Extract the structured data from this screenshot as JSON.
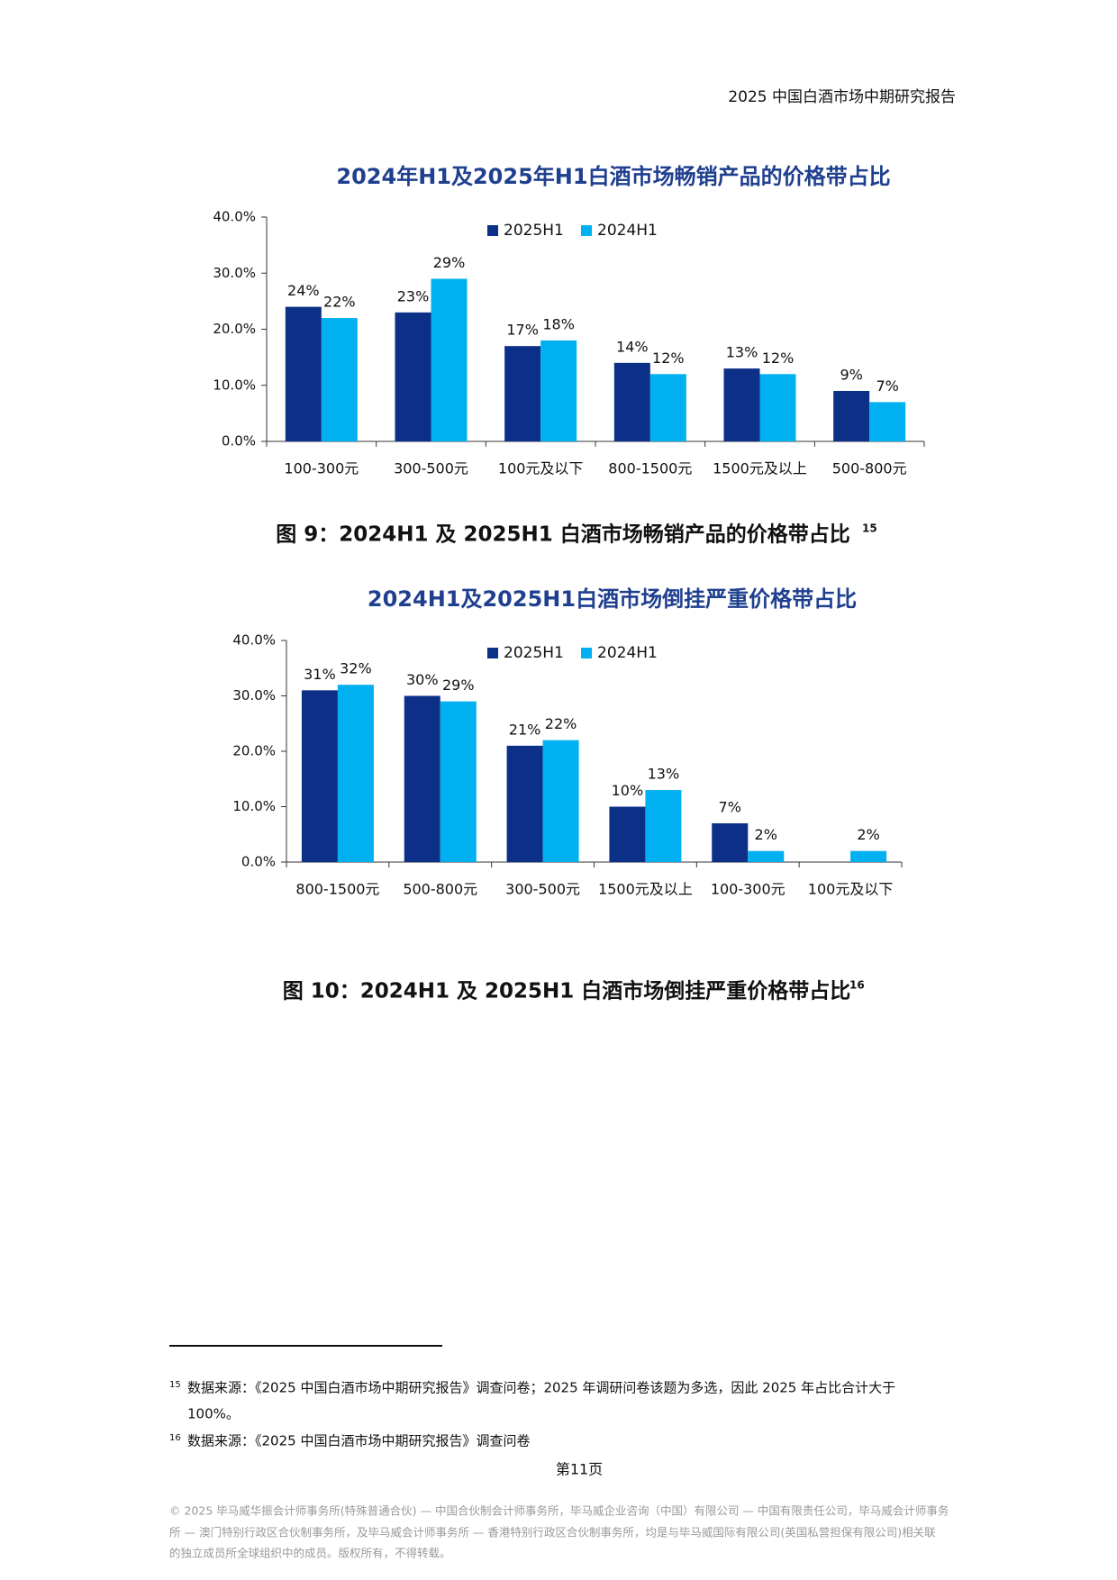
{
  "header": {
    "title": "2025 中国白酒市场中期研究报告"
  },
  "chart_data": [
    {
      "type": "bar",
      "title": "2024年H1及2025年H1白酒市场畅销产品的价格带占比",
      "categories": [
        "100-300元",
        "300-500元",
        "100元及以下",
        "800-1500元",
        "1500元及以上",
        "500-800元"
      ],
      "series": [
        {
          "name": "2025H1",
          "color": "#0c2f87",
          "values": [
            24,
            23,
            17,
            14,
            13,
            9
          ],
          "value_labels": [
            "24%",
            "23%",
            "17%",
            "14%",
            "13%",
            "9%"
          ]
        },
        {
          "name": "2024H1",
          "color": "#00b0f0",
          "values": [
            22,
            29,
            18,
            12,
            12,
            7
          ],
          "value_labels": [
            "22%",
            "29%",
            "18%",
            "12%",
            "12%",
            "7%"
          ]
        }
      ],
      "ylim": [
        0,
        40
      ],
      "yticks": [
        {
          "value": 0,
          "label": "0.0%"
        },
        {
          "value": 10,
          "label": "10.0%"
        },
        {
          "value": 20,
          "label": "20.0%"
        },
        {
          "value": 30,
          "label": "30.0%"
        },
        {
          "value": 40,
          "label": "40.0%"
        }
      ],
      "legend": "top"
    },
    {
      "type": "bar",
      "title": "2024H1及2025H1白酒市场倒挂严重价格带占比",
      "categories": [
        "800-1500元",
        "500-800元",
        "300-500元",
        "1500元及以上",
        "100-300元",
        "100元及以下"
      ],
      "series": [
        {
          "name": "2025H1",
          "color": "#0c2f87",
          "values": [
            31,
            30,
            21,
            10,
            7,
            null
          ],
          "value_labels": [
            "31%",
            "30%",
            "21%",
            "10%",
            "7%",
            null
          ]
        },
        {
          "name": "2024H1",
          "color": "#00b0f0",
          "values": [
            32,
            29,
            22,
            13,
            2,
            2
          ],
          "value_labels": [
            "32%",
            "29%",
            "22%",
            "13%",
            "2%",
            "2%"
          ]
        }
      ],
      "ylim": [
        0,
        40
      ],
      "yticks": [
        {
          "value": 0,
          "label": "0.0%"
        },
        {
          "value": 10,
          "label": "10.0%"
        },
        {
          "value": 20,
          "label": "20.0%"
        },
        {
          "value": 30,
          "label": "30.0%"
        },
        {
          "value": 40,
          "label": "40.0%"
        }
      ],
      "legend": "top"
    }
  ],
  "captions": [
    {
      "text": "图 9：2024H1 及 2025H1 白酒市场畅销产品的价格带占比",
      "note": "15"
    },
    {
      "text": "图 10：2024H1 及 2025H1 白酒市场倒挂严重价格带占比",
      "note": "16"
    }
  ],
  "footnotes": [
    {
      "mark": "15",
      "lines": [
        "数据来源：《2025 中国白酒市场中期研究报告》调查问卷；2025 年调研问卷该题为多选，因此 2025 年占比合计大于",
        "100%。"
      ]
    },
    {
      "mark": "16",
      "lines": [
        "数据来源：《2025 中国白酒市场中期研究报告》调查问卷"
      ]
    }
  ],
  "page_number": "第11页",
  "copyright": [
    "© 2025 毕马威华振会计师事务所(特殊普通合伙) — 中国合伙制会计师事务所，毕马威企业咨询（中国）有限公司 — 中国有限责任公司，毕马威会计师事务",
    "所 — 澳门特别行政区合伙制事务所，及毕马威会计师事务所 — 香港特别行政区合伙制事务所，均是与毕马威国际有限公司(英国私营担保有限公司)相关联",
    "的独立成员所全球组织中的成员。版权所有，不得转载。"
  ]
}
